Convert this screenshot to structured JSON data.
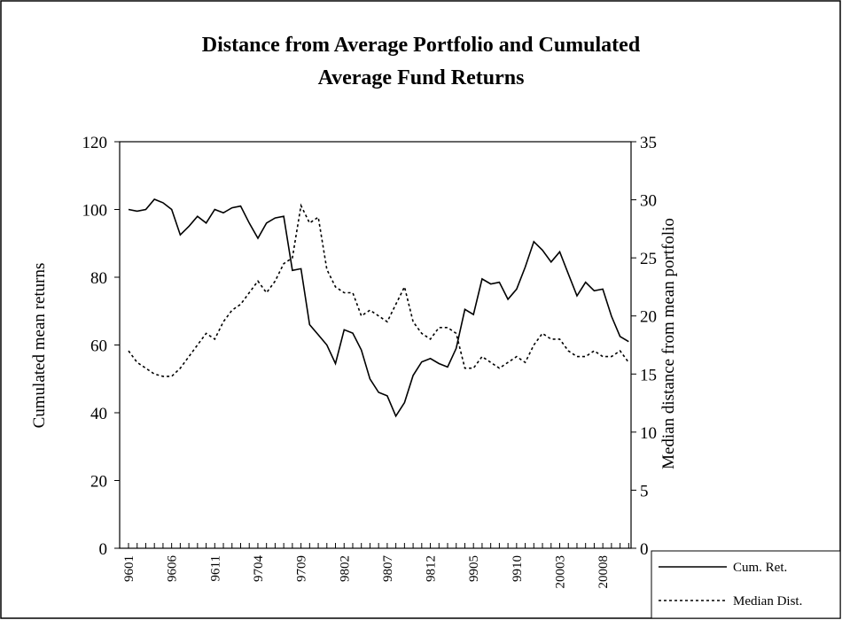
{
  "chart_data": {
    "type": "line",
    "title": [
      "Distance from Average Portfolio and Cumulated",
      "Average Fund Returns"
    ],
    "y_label": "Cumulated mean returns",
    "y2_label": "Median distance from mean portfolio",
    "categories": [
      "9601",
      null,
      null,
      null,
      null,
      "9606",
      null,
      null,
      null,
      null,
      "9611",
      null,
      null,
      null,
      null,
      "9704",
      null,
      null,
      null,
      null,
      "9709",
      null,
      null,
      null,
      null,
      "9802",
      null,
      null,
      null,
      null,
      "9807",
      null,
      null,
      null,
      null,
      "9812",
      null,
      null,
      null,
      null,
      "9905",
      null,
      null,
      null,
      null,
      "9910",
      null,
      null,
      null,
      null,
      "20003",
      null,
      null,
      null,
      null,
      "20008",
      null,
      null,
      null
    ],
    "series": [
      {
        "name": "Cum. Ret.",
        "color": "#000000",
        "dash": "solid",
        "values": [
          100,
          99.5,
          100,
          103,
          102,
          100,
          92.5,
          95,
          98,
          96,
          100,
          99,
          100.5,
          101,
          96,
          91.5,
          96,
          97.5,
          98,
          82,
          82.5,
          66,
          63,
          60,
          54.5,
          64.5,
          63.5,
          58.5,
          50,
          46,
          45,
          39,
          43,
          51,
          55,
          56,
          54.5,
          53.5,
          59,
          70.5,
          69,
          79.5,
          78,
          78.5,
          73.5,
          76.5,
          83,
          90.5,
          88,
          84.5,
          87.5,
          81,
          74.5,
          78.5,
          76,
          76.5,
          68.5,
          62.5,
          61
        ]
      },
      {
        "name": "Median Dist.",
        "color": "#000000",
        "dash": "dotted",
        "axis": "y2",
        "values": [
          17,
          16,
          15.5,
          15,
          14.8,
          14.8,
          15.5,
          16.5,
          17.5,
          18.5,
          18,
          19.5,
          20.5,
          21,
          22,
          23,
          22,
          23,
          24.5,
          25,
          29.5,
          28,
          28.5,
          24,
          22.5,
          22,
          22,
          20,
          20.5,
          20,
          19.5,
          21,
          22.5,
          19.5,
          18.5,
          18,
          19,
          19,
          18.5,
          15.5,
          15.5,
          16.5,
          16,
          15.5,
          16,
          16.5,
          16,
          17.5,
          18.5,
          18,
          18,
          17,
          16.5,
          16.5,
          17,
          16.5,
          16.5,
          17,
          16
        ]
      }
    ],
    "ylim": [
      0,
      120
    ],
    "yticks": [
      0,
      20,
      40,
      60,
      80,
      100,
      120
    ],
    "y2lim": [
      0,
      35
    ],
    "y2ticks": [
      0,
      5,
      10,
      15,
      20,
      25,
      30,
      35
    ],
    "legend": "bottom-right",
    "grid": false
  }
}
